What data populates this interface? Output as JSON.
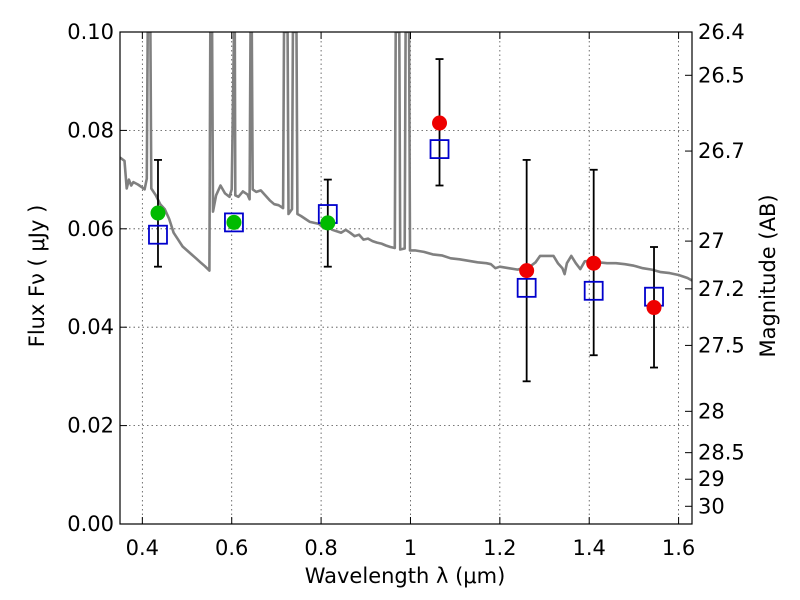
{
  "chart_data": {
    "type": "scatter",
    "xlabel": "Wavelength  λ (μm)",
    "ylabel": "Flux  Fν  ( μJy )",
    "y2label": "Magnitude (AB)",
    "xlim": [
      0.35,
      1.63
    ],
    "ylim": [
      0.0,
      0.1
    ],
    "grid": true,
    "x_ticks": [
      0.4,
      0.6,
      0.8,
      1.0,
      1.2,
      1.4,
      1.6
    ],
    "x_tick_labels": [
      "0.4",
      "0.6",
      "0.8",
      "1",
      "1.2",
      "1.4",
      "1.6"
    ],
    "y_ticks": [
      0.0,
      0.02,
      0.04,
      0.06,
      0.08,
      0.1
    ],
    "y_tick_labels": [
      "0.00",
      "0.02",
      "0.04",
      "0.06",
      "0.08",
      "0.10"
    ],
    "mag_ticks": [
      {
        "label": "26.4",
        "flux": 0.1
      },
      {
        "label": "26.5",
        "flux": 0.0912
      },
      {
        "label": "26.7",
        "flux": 0.0758
      },
      {
        "label": "27",
        "flux": 0.0575
      },
      {
        "label": "27.2",
        "flux": 0.0478
      },
      {
        "label": "27.5",
        "flux": 0.0363
      },
      {
        "label": "28",
        "flux": 0.0229
      },
      {
        "label": "28.5",
        "flux": 0.0145
      },
      {
        "label": "29",
        "flux": 0.0091
      },
      {
        "label": "30",
        "flux": 0.0036
      }
    ],
    "series": [
      {
        "type": "line",
        "color": "#808080",
        "points": [
          [
            0.35,
            0.0745
          ],
          [
            0.36,
            0.0738
          ],
          [
            0.365,
            0.0682
          ],
          [
            0.37,
            0.07
          ],
          [
            0.375,
            0.0688
          ],
          [
            0.38,
            0.0695
          ],
          [
            0.39,
            0.069
          ],
          [
            0.4,
            0.0684
          ],
          [
            0.405,
            0.068
          ],
          [
            0.41,
            0.0702
          ],
          [
            0.412,
            0.1
          ],
          [
            0.418,
            0.1
          ],
          [
            0.42,
            0.0682
          ],
          [
            0.43,
            0.0668
          ],
          [
            0.44,
            0.065
          ],
          [
            0.45,
            0.064
          ],
          [
            0.46,
            0.062
          ],
          [
            0.47,
            0.0592
          ],
          [
            0.48,
            0.0578
          ],
          [
            0.49,
            0.0564
          ],
          [
            0.5,
            0.0556
          ],
          [
            0.51,
            0.0548
          ],
          [
            0.52,
            0.054
          ],
          [
            0.53,
            0.0532
          ],
          [
            0.54,
            0.0524
          ],
          [
            0.55,
            0.0515
          ],
          [
            0.552,
            0.1
          ],
          [
            0.556,
            0.1
          ],
          [
            0.558,
            0.0635
          ],
          [
            0.565,
            0.0668
          ],
          [
            0.575,
            0.0688
          ],
          [
            0.585,
            0.0672
          ],
          [
            0.595,
            0.0665
          ],
          [
            0.6,
            0.068
          ],
          [
            0.605,
            0.1
          ],
          [
            0.607,
            0.1
          ],
          [
            0.608,
            0.0668
          ],
          [
            0.615,
            0.0665
          ],
          [
            0.625,
            0.0676
          ],
          [
            0.635,
            0.067
          ],
          [
            0.64,
            0.066
          ],
          [
            0.642,
            0.1
          ],
          [
            0.645,
            0.1
          ],
          [
            0.647,
            0.068
          ],
          [
            0.655,
            0.0675
          ],
          [
            0.665,
            0.0678
          ],
          [
            0.675,
            0.0668
          ],
          [
            0.685,
            0.0658
          ],
          [
            0.695,
            0.065
          ],
          [
            0.705,
            0.0648
          ],
          [
            0.715,
            0.0642
          ],
          [
            0.717,
            0.1
          ],
          [
            0.725,
            0.1
          ],
          [
            0.727,
            0.063
          ],
          [
            0.735,
            0.064
          ],
          [
            0.737,
            0.1
          ],
          [
            0.745,
            0.1
          ],
          [
            0.747,
            0.063
          ],
          [
            0.755,
            0.0626
          ],
          [
            0.765,
            0.062
          ],
          [
            0.775,
            0.0614
          ],
          [
            0.785,
            0.0612
          ],
          [
            0.795,
            0.061
          ],
          [
            0.805,
            0.0602
          ],
          [
            0.815,
            0.0604
          ],
          [
            0.825,
            0.0598
          ],
          [
            0.835,
            0.0595
          ],
          [
            0.845,
            0.0592
          ],
          [
            0.855,
            0.0598
          ],
          [
            0.865,
            0.0592
          ],
          [
            0.875,
            0.0585
          ],
          [
            0.885,
            0.0588
          ],
          [
            0.895,
            0.0578
          ],
          [
            0.905,
            0.058
          ],
          [
            0.915,
            0.0575
          ],
          [
            0.925,
            0.0572
          ],
          [
            0.935,
            0.057
          ],
          [
            0.945,
            0.0566
          ],
          [
            0.955,
            0.0563
          ],
          [
            0.965,
            0.0561
          ],
          [
            0.967,
            0.1
          ],
          [
            0.975,
            0.1
          ],
          [
            0.977,
            0.0558
          ],
          [
            0.987,
            0.056
          ],
          [
            0.989,
            0.1
          ],
          [
            0.997,
            0.1
          ],
          [
            0.999,
            0.0556
          ],
          [
            1.01,
            0.0556
          ],
          [
            1.03,
            0.0553
          ],
          [
            1.05,
            0.0548
          ],
          [
            1.07,
            0.0546
          ],
          [
            1.09,
            0.054
          ],
          [
            1.11,
            0.0538
          ],
          [
            1.13,
            0.0535
          ],
          [
            1.15,
            0.0532
          ],
          [
            1.17,
            0.053
          ],
          [
            1.18,
            0.0528
          ],
          [
            1.19,
            0.052
          ],
          [
            1.2,
            0.0523
          ],
          [
            1.22,
            0.052
          ],
          [
            1.24,
            0.0517
          ],
          [
            1.25,
            0.052
          ],
          [
            1.26,
            0.0521
          ],
          [
            1.27,
            0.0525
          ],
          [
            1.28,
            0.0532
          ],
          [
            1.29,
            0.0545
          ],
          [
            1.3,
            0.0545
          ],
          [
            1.32,
            0.0545
          ],
          [
            1.33,
            0.053
          ],
          [
            1.34,
            0.052
          ],
          [
            1.345,
            0.0508
          ],
          [
            1.35,
            0.053
          ],
          [
            1.36,
            0.0545
          ],
          [
            1.37,
            0.053
          ],
          [
            1.38,
            0.0518
          ],
          [
            1.39,
            0.0534
          ],
          [
            1.4,
            0.0535
          ],
          [
            1.42,
            0.0532
          ],
          [
            1.44,
            0.053
          ],
          [
            1.46,
            0.053
          ],
          [
            1.48,
            0.0528
          ],
          [
            1.5,
            0.0525
          ],
          [
            1.52,
            0.052
          ],
          [
            1.54,
            0.0517
          ],
          [
            1.56,
            0.0512
          ],
          [
            1.58,
            0.051
          ],
          [
            1.6,
            0.0506
          ],
          [
            1.62,
            0.05
          ],
          [
            1.63,
            0.0495
          ]
        ]
      },
      {
        "type": "errorbar",
        "color": "#000000",
        "points": [
          {
            "x": 0.435,
            "low": 0.0523,
            "high": 0.074
          },
          {
            "x": 0.815,
            "low": 0.0523,
            "high": 0.07
          },
          {
            "x": 1.065,
            "low": 0.0688,
            "high": 0.0945
          },
          {
            "x": 1.26,
            "low": 0.029,
            "high": 0.074
          },
          {
            "x": 1.41,
            "low": 0.0343,
            "high": 0.072
          },
          {
            "x": 1.545,
            "low": 0.0318,
            "high": 0.0563
          }
        ]
      },
      {
        "type": "scatter",
        "marker": "open-square",
        "color": "#0000cc",
        "x": [
          0.435,
          0.605,
          0.815,
          1.065,
          1.26,
          1.41,
          1.545
        ],
        "y": [
          0.0588,
          0.0613,
          0.063,
          0.0762,
          0.048,
          0.0474,
          0.0462
        ]
      },
      {
        "type": "scatter",
        "marker": "circle",
        "color": "#00bb00",
        "x": [
          0.435,
          0.605,
          0.815
        ],
        "y": [
          0.0632,
          0.0613,
          0.0612
        ]
      },
      {
        "type": "scatter",
        "marker": "circle",
        "color": "#ee0000",
        "x": [
          1.065,
          1.26,
          1.41,
          1.545
        ],
        "y": [
          0.0815,
          0.0515,
          0.053,
          0.044
        ]
      }
    ]
  }
}
